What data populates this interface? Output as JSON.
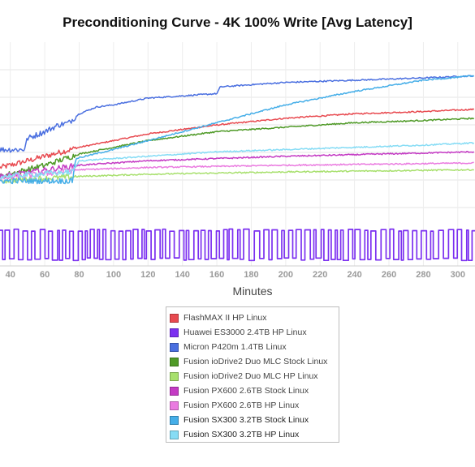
{
  "chart_data": {
    "type": "line",
    "title": "Preconditioning Curve - 4K 100% Write [Avg Latency]",
    "xlabel": "Minutes",
    "ylabel": "",
    "x_ticks": [
      40,
      60,
      80,
      100,
      120,
      140,
      160,
      180,
      200,
      220,
      240,
      260,
      280,
      300
    ],
    "xlim": [
      34,
      310
    ],
    "grid": true,
    "legend_position": "bottom-center",
    "series": [
      {
        "name": "FlashMAX II HP Linux",
        "color": "#e84a50",
        "style": "smooth",
        "points": [
          [
            34,
            0.44
          ],
          [
            40,
            0.45
          ],
          [
            80,
            0.53
          ],
          [
            120,
            0.59
          ],
          [
            160,
            0.63
          ],
          [
            200,
            0.66
          ],
          [
            240,
            0.68
          ],
          [
            280,
            0.69
          ],
          [
            310,
            0.7
          ]
        ]
      },
      {
        "name": "Huawei ES3000 2.4TB HP Linux",
        "color": "#7b2ff0",
        "style": "square",
        "y_low": 0.03,
        "y_high": 0.16
      },
      {
        "name": "Micron P420m 1.4TB Linux",
        "color": "#4a6fe0",
        "style": "smooth",
        "points": [
          [
            34,
            0.52
          ],
          [
            48,
            0.52
          ],
          [
            50,
            0.57
          ],
          [
            60,
            0.6
          ],
          [
            68,
            0.63
          ],
          [
            74,
            0.64
          ],
          [
            80,
            0.68
          ],
          [
            90,
            0.71
          ],
          [
            100,
            0.72
          ],
          [
            120,
            0.75
          ],
          [
            140,
            0.76
          ],
          [
            160,
            0.77
          ],
          [
            162,
            0.8
          ],
          [
            180,
            0.81
          ],
          [
            200,
            0.82
          ],
          [
            240,
            0.83
          ],
          [
            280,
            0.84
          ],
          [
            310,
            0.85
          ]
        ]
      },
      {
        "name": "Fusion ioDrive2 Duo MLC Stock Linux",
        "color": "#4f9a27",
        "style": "smooth",
        "points": [
          [
            34,
            0.4
          ],
          [
            60,
            0.45
          ],
          [
            80,
            0.5
          ],
          [
            120,
            0.56
          ],
          [
            160,
            0.6
          ],
          [
            200,
            0.62
          ],
          [
            240,
            0.64
          ],
          [
            280,
            0.65
          ],
          [
            310,
            0.66
          ]
        ]
      },
      {
        "name": "Fusion ioDrive2 Duo MLC HP Linux",
        "color": "#a8e06e",
        "style": "smooth",
        "points": [
          [
            34,
            0.38
          ],
          [
            80,
            0.4
          ],
          [
            120,
            0.41
          ],
          [
            200,
            0.42
          ],
          [
            310,
            0.43
          ]
        ]
      },
      {
        "name": "Fusion PX600 2.6TB Stock Linux",
        "color": "#c43bc4",
        "style": "smooth",
        "points": [
          [
            34,
            0.4
          ],
          [
            80,
            0.45
          ],
          [
            120,
            0.47
          ],
          [
            200,
            0.49
          ],
          [
            310,
            0.51
          ]
        ]
      },
      {
        "name": "Fusion PX600 2.6TB HP Linux",
        "color": "#ea7be0",
        "style": "smooth",
        "points": [
          [
            34,
            0.39
          ],
          [
            80,
            0.43
          ],
          [
            120,
            0.44
          ],
          [
            200,
            0.45
          ],
          [
            310,
            0.46
          ]
        ]
      },
      {
        "name": "Fusion SX300 3.2TB Stock Linux",
        "color": "#45aee8",
        "style": "smooth",
        "points": [
          [
            34,
            0.38
          ],
          [
            76,
            0.38
          ],
          [
            78,
            0.48
          ],
          [
            100,
            0.52
          ],
          [
            120,
            0.56
          ],
          [
            160,
            0.64
          ],
          [
            200,
            0.72
          ],
          [
            240,
            0.78
          ],
          [
            280,
            0.83
          ],
          [
            310,
            0.85
          ]
        ]
      },
      {
        "name": "Fusion SX300 3.2TB HP Linux",
        "color": "#86dcf5",
        "style": "smooth",
        "points": [
          [
            34,
            0.4
          ],
          [
            76,
            0.42
          ],
          [
            80,
            0.47
          ],
          [
            120,
            0.49
          ],
          [
            160,
            0.51
          ],
          [
            200,
            0.52
          ],
          [
            240,
            0.53
          ],
          [
            280,
            0.54
          ],
          [
            310,
            0.55
          ]
        ]
      }
    ]
  }
}
